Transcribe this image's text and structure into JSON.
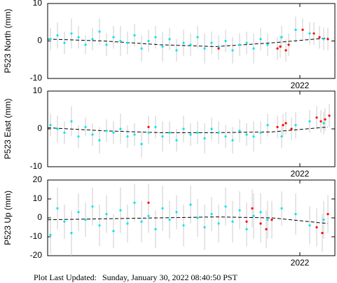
{
  "chart_data": [
    {
      "type": "scatter",
      "ylabel": "P523 North (mm)",
      "xlim": [
        2020.2,
        2022.25
      ],
      "xticks": [
        2022
      ],
      "ylim": [
        -10,
        10
      ],
      "yticks": [
        -10,
        0,
        10
      ],
      "series": [
        {
          "color": "#00e5ee",
          "x": [
            2020.22,
            2020.27,
            2020.32,
            2020.37,
            2020.42,
            2020.47,
            2020.52,
            2020.57,
            2020.62,
            2020.67,
            2020.72,
            2020.77,
            2020.82,
            2020.87,
            2020.92,
            2020.97,
            2021.02,
            2021.07,
            2021.12,
            2021.17,
            2021.22,
            2021.27,
            2021.32,
            2021.37,
            2021.42,
            2021.47,
            2021.52,
            2021.57,
            2021.62,
            2021.67,
            2021.72,
            2021.77,
            2021.87,
            2021.97,
            2022.07,
            2022.17
          ],
          "values": [
            0.5,
            1.5,
            -0.5,
            2,
            1,
            -1,
            0.5,
            2.5,
            -1,
            1,
            0,
            -0.5,
            1.5,
            -2,
            0,
            1,
            -1.5,
            0.5,
            -2.5,
            -0.5,
            -1,
            1,
            -2,
            -0.5,
            -1.5,
            0,
            -2.5,
            -1,
            -0.5,
            -2,
            0.5,
            -1,
            1,
            3,
            2,
            0.5
          ],
          "errors": [
            3,
            3.5,
            3,
            4,
            3,
            2.5,
            3,
            3.5,
            3,
            3,
            4,
            3,
            3,
            3.5,
            3,
            3,
            4,
            3,
            3,
            3.5,
            3,
            3,
            4,
            3,
            3,
            3,
            3.5,
            3,
            3,
            4,
            3,
            3,
            3,
            3.5,
            3,
            3
          ]
        },
        {
          "color": "#ff0000",
          "x": [
            2021.42,
            2021.84,
            2021.86,
            2021.9,
            2021.92,
            2022.02,
            2022.1,
            2022.14,
            2022.2
          ],
          "values": [
            -2,
            -2,
            -1.5,
            -2.5,
            -1,
            3,
            2,
            1,
            0.5
          ],
          "errors": [
            3,
            3,
            3,
            3,
            3,
            3,
            3,
            3,
            3
          ]
        }
      ],
      "trend": {
        "color": "#000000",
        "x": [
          2020.2,
          2020.6,
          2021.0,
          2021.4,
          2021.8,
          2022.2
        ],
        "values": [
          0.5,
          0,
          -1,
          -1.5,
          -0.5,
          0.8
        ]
      }
    },
    {
      "type": "scatter",
      "ylabel": "P523 East (mm)",
      "xlim": [
        2020.2,
        2022.25
      ],
      "xticks": [
        2022
      ],
      "ylim": [
        -10,
        10
      ],
      "yticks": [
        -10,
        0,
        10
      ],
      "series": [
        {
          "color": "#00e5ee",
          "x": [
            2020.22,
            2020.27,
            2020.32,
            2020.37,
            2020.42,
            2020.47,
            2020.52,
            2020.57,
            2020.62,
            2020.67,
            2020.72,
            2020.77,
            2020.82,
            2020.87,
            2020.92,
            2020.97,
            2021.02,
            2021.07,
            2021.12,
            2021.17,
            2021.22,
            2021.27,
            2021.32,
            2021.37,
            2021.42,
            2021.47,
            2021.52,
            2021.57,
            2021.62,
            2021.67,
            2021.72,
            2021.77,
            2021.87,
            2021.97,
            2022.07,
            2022.17
          ],
          "values": [
            1,
            0,
            -1,
            2,
            -2,
            0.5,
            -1.5,
            -3,
            -0.5,
            -1,
            0,
            -2,
            -1.5,
            -4,
            -1,
            0.5,
            -2,
            -1,
            -3,
            0,
            -1.5,
            -1,
            -2.5,
            0,
            -1,
            -2,
            -3,
            -0.5,
            -1.5,
            -2,
            -1,
            1,
            -2,
            1,
            2,
            1.5
          ],
          "errors": [
            3,
            3.5,
            3,
            4,
            3,
            2.5,
            3,
            3.5,
            3,
            3,
            4,
            3,
            3,
            3.5,
            3,
            3,
            4,
            3,
            3,
            3.5,
            3,
            3,
            4,
            3,
            3,
            3,
            3.5,
            3,
            3,
            4,
            3,
            3,
            3,
            3.5,
            3,
            3
          ]
        },
        {
          "color": "#ff0000",
          "x": [
            2020.92,
            2021.84,
            2021.88,
            2021.9,
            2021.94,
            2022.12,
            2022.15,
            2022.18,
            2022.21
          ],
          "values": [
            0.5,
            0.5,
            1,
            1.5,
            0,
            3,
            2,
            2.5,
            3.5
          ],
          "errors": [
            3,
            3,
            3,
            3,
            3,
            3,
            3,
            3,
            3
          ]
        }
      ],
      "trend": {
        "color": "#000000",
        "x": [
          2020.2,
          2020.6,
          2021.0,
          2021.4,
          2021.8,
          2022.2
        ],
        "values": [
          0.3,
          -0.5,
          -1,
          -1,
          -0.8,
          0.5
        ]
      }
    },
    {
      "type": "scatter",
      "ylabel": "P523 Up (mm)",
      "xlim": [
        2020.2,
        2022.25
      ],
      "xticks": [
        2022
      ],
      "ylim": [
        -20,
        20
      ],
      "yticks": [
        -20,
        -10,
        0,
        10,
        20
      ],
      "series": [
        {
          "color": "#00e5ee",
          "x": [
            2020.22,
            2020.27,
            2020.32,
            2020.37,
            2020.42,
            2020.47,
            2020.52,
            2020.57,
            2020.62,
            2020.67,
            2020.72,
            2020.77,
            2020.82,
            2020.87,
            2020.92,
            2020.97,
            2021.02,
            2021.07,
            2021.12,
            2021.17,
            2021.22,
            2021.27,
            2021.32,
            2021.37,
            2021.42,
            2021.47,
            2021.52,
            2021.57,
            2021.62,
            2021.67,
            2021.72,
            2021.77,
            2021.87,
            2021.97,
            2022.07,
            2022.17
          ],
          "values": [
            -9,
            5,
            -2,
            -8,
            3,
            -1,
            6,
            -4,
            2,
            -7,
            4,
            -3,
            8,
            -2,
            1,
            -6,
            5,
            -1,
            3,
            -4,
            7,
            0,
            -5,
            2,
            -3,
            6,
            -2,
            4,
            -6,
            1,
            3,
            -1,
            5,
            2,
            -4,
            -1
          ],
          "errors": [
            10,
            11,
            9,
            12,
            10,
            9,
            10,
            11,
            10,
            9,
            12,
            10,
            10,
            11,
            9,
            10,
            12,
            10,
            9,
            11,
            10,
            10,
            12,
            9,
            10,
            10,
            11,
            10,
            9,
            12,
            10,
            10,
            9,
            11,
            10,
            10
          ]
        },
        {
          "color": "#ff0000",
          "x": [
            2020.92,
            2021.62,
            2021.66,
            2021.72,
            2021.76,
            2021.8,
            2022.12,
            2022.16,
            2022.2
          ],
          "values": [
            8,
            -2,
            5,
            -3,
            -6,
            -1,
            -5,
            -8,
            2
          ],
          "errors": [
            10,
            10,
            10,
            10,
            10,
            10,
            10,
            10,
            10
          ]
        }
      ],
      "trend": {
        "color": "#000000",
        "x": [
          2020.2,
          2020.6,
          2021.0,
          2021.4,
          2021.8,
          2022.2
        ],
        "values": [
          -1,
          -0.5,
          0,
          0.5,
          0,
          -3
        ]
      }
    }
  ],
  "footer": {
    "label": "Plot Last Updated:",
    "timestamp": "Sunday, January 30, 2022 08:40:50 PST"
  }
}
